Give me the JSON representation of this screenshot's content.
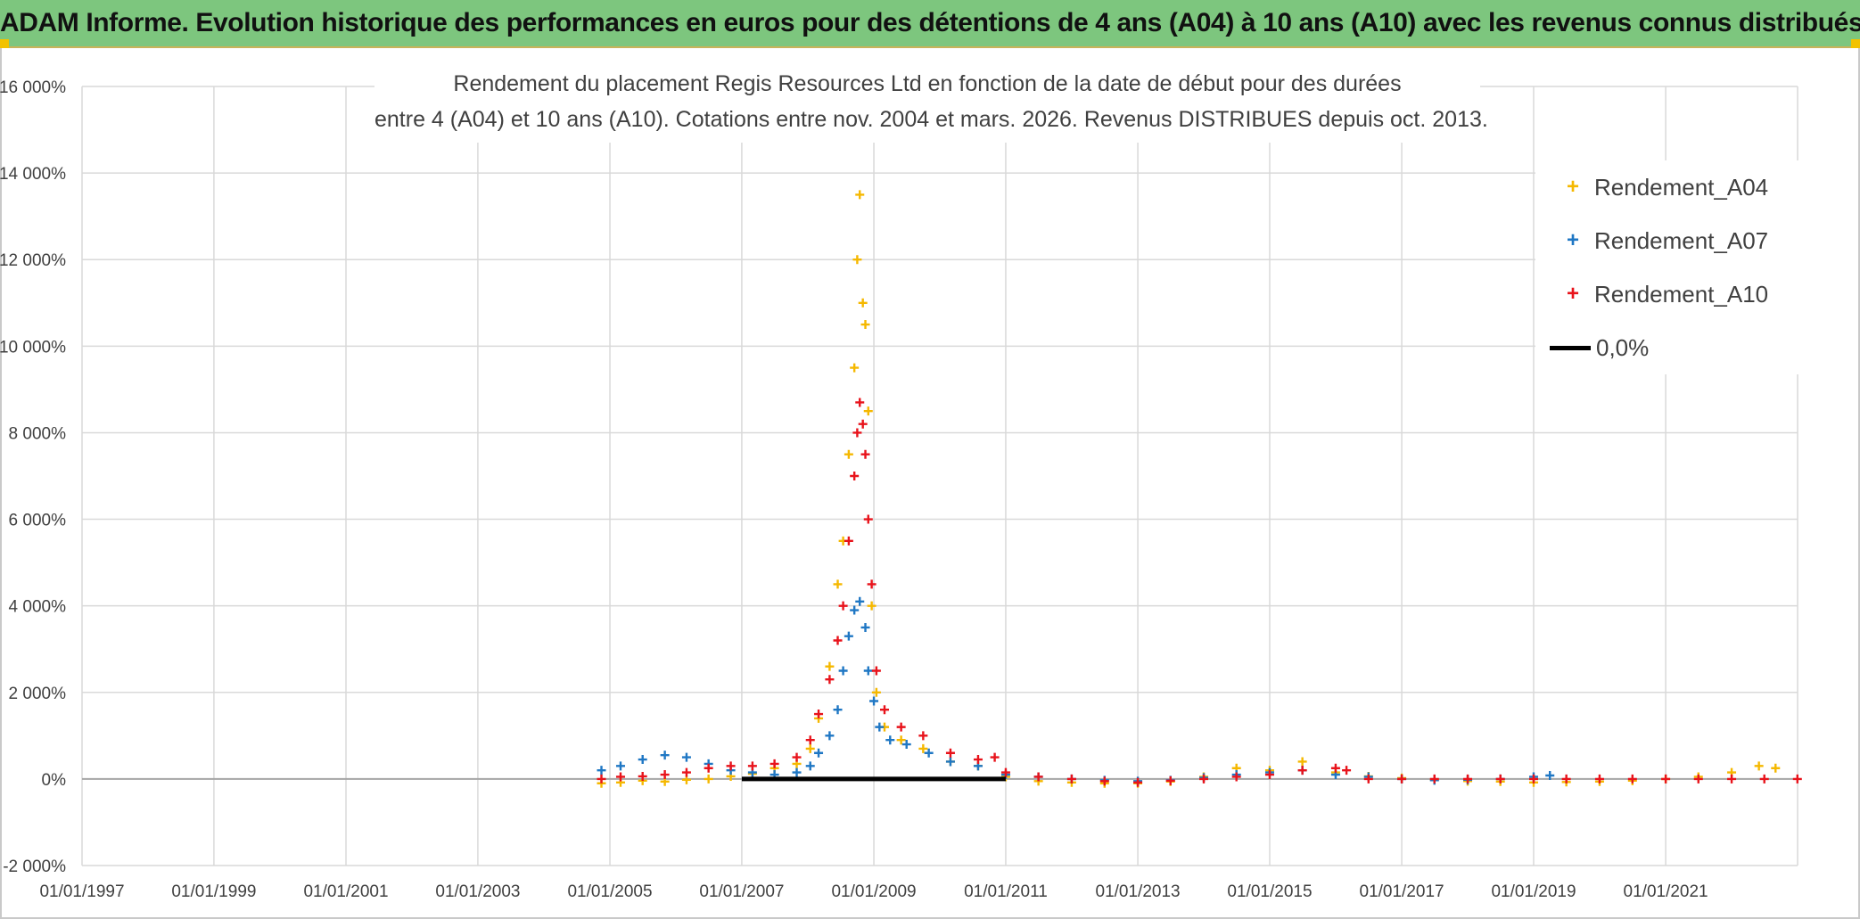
{
  "header": {
    "title": "ADAM Informe. Evolution historique des performances en euros pour des détentions de 4 ans (A04) à 10 ans (A10) avec les revenus connus distribués"
  },
  "chart_data": {
    "type": "scatter",
    "title": "Rendement du placement Regis Resources Ltd en fonction de la date de début pour des durées",
    "subtitle": "entre 4 (A04) et 10 ans (A10). Cotations entre nov. 2004 et mars. 2026. Revenus DISTRIBUES depuis oct. 2013.",
    "xlabel": "",
    "ylabel": "",
    "x_range": [
      "1997-01-01",
      "2023-01-01"
    ],
    "ylim": [
      -2000,
      16000
    ],
    "y_unit": "%",
    "y_ticks": [
      -2000,
      0,
      2000,
      4000,
      6000,
      8000,
      10000,
      12000,
      14000,
      16000
    ],
    "y_tick_labels": [
      "-2 000%",
      "0%",
      "2 000%",
      "4 000%",
      "6 000%",
      "8 000%",
      "10 000%",
      "12 000%",
      "14 000%",
      "16 000%"
    ],
    "x_tick_labels": [
      "01/01/1997",
      "01/01/1999",
      "01/01/2001",
      "01/01/2003",
      "01/01/2005",
      "01/01/2007",
      "01/01/2009",
      "01/01/2011",
      "01/01/2013",
      "01/01/2015",
      "01/01/2017",
      "01/01/2019",
      "01/01/2021"
    ],
    "x_tick_years": [
      1997,
      1999,
      2001,
      2003,
      2005,
      2007,
      2009,
      2011,
      2013,
      2015,
      2017,
      2019,
      2021
    ],
    "grid": true,
    "legend_position": "top-right",
    "series": [
      {
        "name": "Rendement_A04",
        "color": "#f5b800",
        "marker": "plus",
        "points": [
          [
            "2004-11-15",
            -100
          ],
          [
            "2005-03-01",
            -80
          ],
          [
            "2005-07-01",
            -40
          ],
          [
            "2005-11-01",
            -60
          ],
          [
            "2006-03-01",
            -20
          ],
          [
            "2006-07-01",
            0
          ],
          [
            "2006-11-01",
            60
          ],
          [
            "2007-03-01",
            120
          ],
          [
            "2007-07-01",
            250
          ],
          [
            "2007-11-01",
            350
          ],
          [
            "2008-01-15",
            700
          ],
          [
            "2008-03-01",
            1400
          ],
          [
            "2008-05-01",
            2600
          ],
          [
            "2008-06-15",
            4500
          ],
          [
            "2008-07-15",
            5500
          ],
          [
            "2008-08-15",
            7500
          ],
          [
            "2008-09-15",
            9500
          ],
          [
            "2008-10-01",
            12000
          ],
          [
            "2008-10-15",
            13500
          ],
          [
            "2008-11-01",
            11000
          ],
          [
            "2008-11-15",
            10500
          ],
          [
            "2008-12-01",
            8500
          ],
          [
            "2008-12-20",
            4000
          ],
          [
            "2009-01-15",
            2000
          ],
          [
            "2009-03-01",
            1200
          ],
          [
            "2009-06-01",
            900
          ],
          [
            "2009-10-01",
            700
          ],
          [
            "2010-03-01",
            400
          ],
          [
            "2010-08-01",
            300
          ],
          [
            "2011-01-01",
            50
          ],
          [
            "2011-07-01",
            -50
          ],
          [
            "2012-01-01",
            -80
          ],
          [
            "2012-07-01",
            -100
          ],
          [
            "2013-01-01",
            -100
          ],
          [
            "2013-07-01",
            -60
          ],
          [
            "2014-01-01",
            50
          ],
          [
            "2014-07-01",
            250
          ],
          [
            "2015-01-01",
            200
          ],
          [
            "2015-07-01",
            400
          ],
          [
            "2016-01-01",
            150
          ],
          [
            "2016-07-01",
            60
          ],
          [
            "2017-01-01",
            20
          ],
          [
            "2017-07-01",
            -20
          ],
          [
            "2018-01-01",
            -50
          ],
          [
            "2018-07-01",
            -60
          ],
          [
            "2019-01-01",
            -80
          ],
          [
            "2019-07-01",
            -70
          ],
          [
            "2020-01-01",
            -60
          ],
          [
            "2020-07-01",
            -40
          ],
          [
            "2021-01-01",
            0
          ],
          [
            "2021-07-01",
            50
          ],
          [
            "2022-01-01",
            150
          ],
          [
            "2022-06-01",
            300
          ],
          [
            "2022-09-01",
            250
          ]
        ]
      },
      {
        "name": "Rendement_A07",
        "color": "#1f77c4",
        "marker": "plus",
        "points": [
          [
            "2004-11-15",
            200
          ],
          [
            "2005-03-01",
            300
          ],
          [
            "2005-07-01",
            450
          ],
          [
            "2005-11-01",
            550
          ],
          [
            "2006-03-01",
            500
          ],
          [
            "2006-07-01",
            350
          ],
          [
            "2006-11-01",
            200
          ],
          [
            "2007-03-01",
            150
          ],
          [
            "2007-07-01",
            100
          ],
          [
            "2007-11-01",
            150
          ],
          [
            "2008-01-15",
            300
          ],
          [
            "2008-03-01",
            600
          ],
          [
            "2008-05-01",
            1000
          ],
          [
            "2008-06-15",
            1600
          ],
          [
            "2008-07-15",
            2500
          ],
          [
            "2008-08-15",
            3300
          ],
          [
            "2008-09-15",
            3900
          ],
          [
            "2008-10-15",
            4100
          ],
          [
            "2008-11-15",
            3500
          ],
          [
            "2008-12-01",
            2500
          ],
          [
            "2009-01-01",
            1800
          ],
          [
            "2009-02-01",
            1200
          ],
          [
            "2009-04-01",
            900
          ],
          [
            "2009-07-01",
            800
          ],
          [
            "2009-11-01",
            600
          ],
          [
            "2010-03-01",
            400
          ],
          [
            "2010-08-01",
            300
          ],
          [
            "2011-01-01",
            100
          ],
          [
            "2011-07-01",
            50
          ],
          [
            "2012-01-01",
            0
          ],
          [
            "2012-07-01",
            -30
          ],
          [
            "2013-01-01",
            -50
          ],
          [
            "2013-07-01",
            -30
          ],
          [
            "2014-01-01",
            30
          ],
          [
            "2014-07-01",
            100
          ],
          [
            "2015-01-01",
            150
          ],
          [
            "2015-07-01",
            200
          ],
          [
            "2016-01-01",
            100
          ],
          [
            "2016-07-01",
            50
          ],
          [
            "2017-01-01",
            0
          ],
          [
            "2017-07-01",
            -30
          ],
          [
            "2018-01-01",
            -20
          ],
          [
            "2018-07-01",
            0
          ],
          [
            "2019-01-01",
            50
          ],
          [
            "2019-04-01",
            80
          ]
        ]
      },
      {
        "name": "Rendement_A10",
        "color": "#e8131b",
        "marker": "plus",
        "points": [
          [
            "2004-11-15",
            0
          ],
          [
            "2005-03-01",
            50
          ],
          [
            "2005-07-01",
            60
          ],
          [
            "2005-11-01",
            100
          ],
          [
            "2006-03-01",
            150
          ],
          [
            "2006-07-01",
            250
          ],
          [
            "2006-11-01",
            300
          ],
          [
            "2007-03-01",
            300
          ],
          [
            "2007-07-01",
            350
          ],
          [
            "2007-11-01",
            500
          ],
          [
            "2008-01-15",
            900
          ],
          [
            "2008-03-01",
            1500
          ],
          [
            "2008-05-01",
            2300
          ],
          [
            "2008-06-15",
            3200
          ],
          [
            "2008-07-15",
            4000
          ],
          [
            "2008-08-15",
            5500
          ],
          [
            "2008-09-15",
            7000
          ],
          [
            "2008-10-01",
            8000
          ],
          [
            "2008-10-15",
            8700
          ],
          [
            "2008-11-01",
            8200
          ],
          [
            "2008-11-15",
            7500
          ],
          [
            "2008-12-01",
            6000
          ],
          [
            "2008-12-20",
            4500
          ],
          [
            "2009-01-15",
            2500
          ],
          [
            "2009-03-01",
            1600
          ],
          [
            "2009-06-01",
            1200
          ],
          [
            "2009-10-01",
            1000
          ],
          [
            "2010-03-01",
            600
          ],
          [
            "2010-08-01",
            450
          ],
          [
            "2010-11-01",
            500
          ],
          [
            "2011-01-01",
            150
          ],
          [
            "2011-07-01",
            50
          ],
          [
            "2012-01-01",
            0
          ],
          [
            "2012-07-01",
            -50
          ],
          [
            "2013-01-01",
            -80
          ],
          [
            "2013-07-01",
            -40
          ],
          [
            "2014-01-01",
            0
          ],
          [
            "2014-07-01",
            50
          ],
          [
            "2015-01-01",
            100
          ],
          [
            "2015-07-01",
            200
          ],
          [
            "2016-01-01",
            250
          ],
          [
            "2016-03-01",
            200
          ],
          [
            "2016-07-01",
            0
          ],
          [
            "2017-01-01",
            0
          ],
          [
            "2017-07-01",
            0
          ],
          [
            "2018-01-01",
            0
          ],
          [
            "2018-07-01",
            0
          ],
          [
            "2019-01-01",
            0
          ],
          [
            "2019-07-01",
            0
          ],
          [
            "2020-01-01",
            0
          ],
          [
            "2020-07-01",
            0
          ],
          [
            "2021-01-01",
            0
          ],
          [
            "2021-07-01",
            0
          ],
          [
            "2022-01-01",
            0
          ],
          [
            "2022-07-01",
            0
          ],
          [
            "2022-12-31",
            0
          ]
        ]
      },
      {
        "name": "0,0%",
        "color": "#000000",
        "marker": "line",
        "points": [
          [
            "2007-01-01",
            0
          ],
          [
            "2011-01-01",
            0
          ]
        ]
      }
    ]
  }
}
